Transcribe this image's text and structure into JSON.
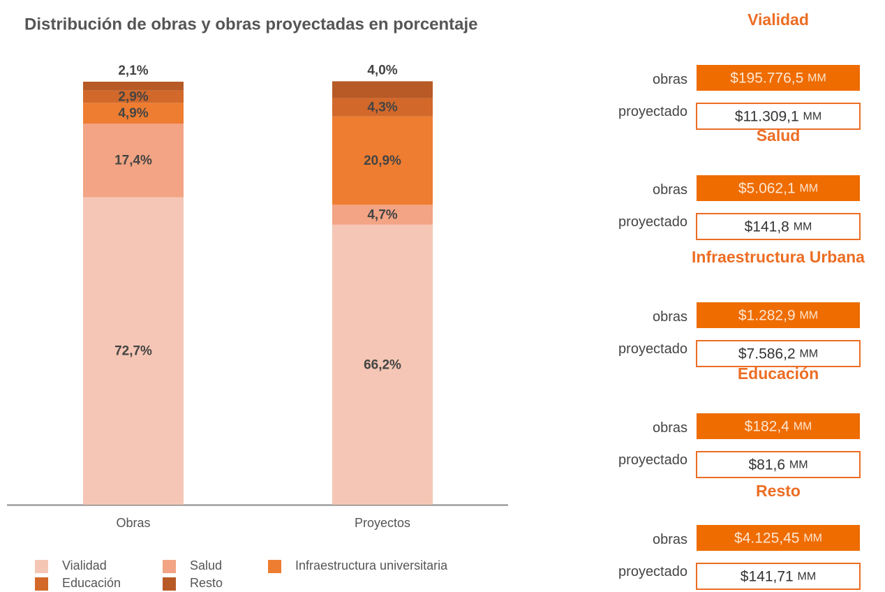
{
  "chart_data": {
    "type": "stacked_bar",
    "title": "Distribución de obras y obras proyectadas en porcentaje",
    "categories": [
      "Obras",
      "Proyectos"
    ],
    "ylim": [
      0,
      100
    ],
    "series": [
      {
        "name": "Vialidad",
        "color": "#f5c6b5",
        "values": [
          72.7,
          66.2
        ],
        "value_labels": [
          "72,7%",
          "66,2%"
        ]
      },
      {
        "name": "Salud",
        "color": "#f2a484",
        "values": [
          17.4,
          4.7
        ],
        "value_labels": [
          "17,4%",
          "4,7%"
        ]
      },
      {
        "name": "Infraestructura universitaria",
        "color": "#ee7d31",
        "values": [
          4.9,
          20.9
        ],
        "value_labels": [
          "4,9%",
          "20,9%"
        ]
      },
      {
        "name": "Educación",
        "color": "#d2682a",
        "values": [
          2.9,
          4.3
        ],
        "value_labels": [
          "2,9%",
          "4,3%"
        ]
      },
      {
        "name": "Resto",
        "color": "#b85a26",
        "values": [
          2.1,
          4.0
        ],
        "value_labels": [
          "2,1%",
          "4,0%"
        ]
      }
    ]
  },
  "panel": {
    "sections": [
      {
        "title": "Vialidad",
        "rows": [
          {
            "label": "obras",
            "amount": "$195.776,5",
            "unit": "MM"
          },
          {
            "label": "proyectado",
            "amount": "$11.309,1",
            "unit": "MM"
          }
        ]
      },
      {
        "title": "Salud",
        "rows": [
          {
            "label": "obras",
            "amount": "$5.062,1",
            "unit": "MM"
          },
          {
            "label": "proyectado",
            "amount": "$141,8",
            "unit": "MM"
          }
        ]
      },
      {
        "title": "Infraestructura Urbana",
        "rows": [
          {
            "label": "obras",
            "amount": "$1.282,9",
            "unit": "MM"
          },
          {
            "label": "proyectado",
            "amount": "$7.586,2",
            "unit": "MM"
          }
        ]
      },
      {
        "title": "Educación",
        "rows": [
          {
            "label": "obras",
            "amount": "$182,4",
            "unit": "MM"
          },
          {
            "label": "proyectado",
            "amount": "$81,6",
            "unit": "MM"
          }
        ]
      },
      {
        "title": "Resto",
        "rows": [
          {
            "label": "obras",
            "amount": "$4.125,45",
            "unit": "MM"
          },
          {
            "label": "proyectado",
            "amount": "$141,71",
            "unit": "MM"
          }
        ]
      }
    ]
  }
}
